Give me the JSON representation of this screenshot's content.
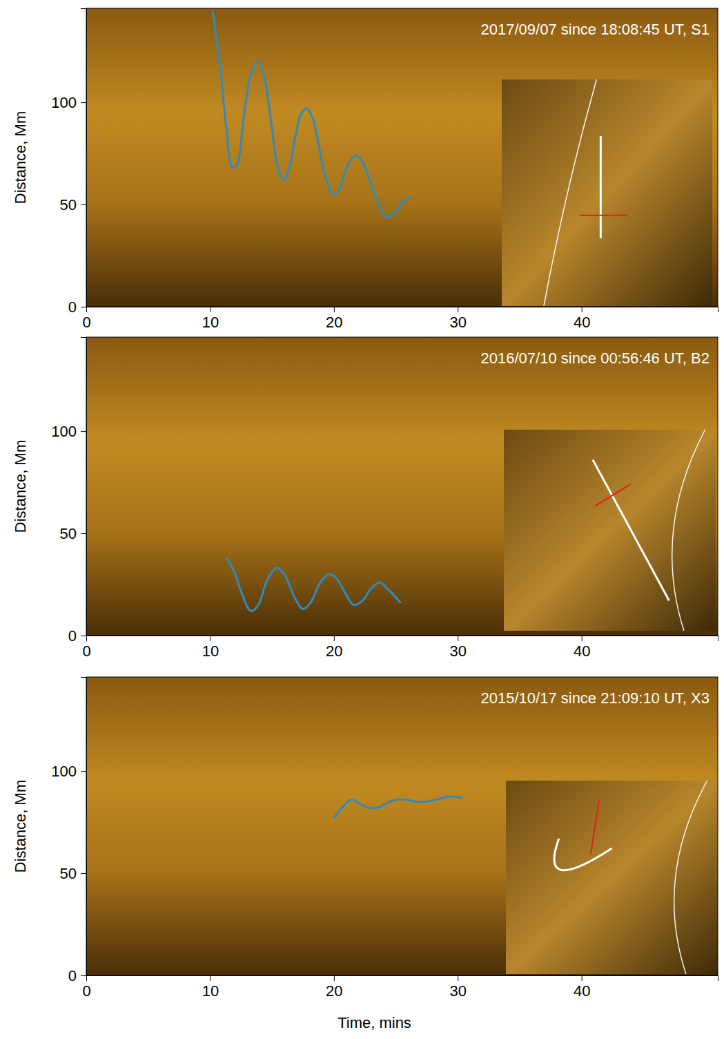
{
  "chart_data": [
    {
      "type": "line",
      "title": "2017/09/07 since 18:08:45 UT, S1",
      "y_label": "Distance, Mm",
      "xlim": [
        0,
        51
      ],
      "xticks": [
        0,
        10,
        20,
        30,
        40
      ],
      "ylim": [
        0,
        146
      ],
      "yticks": [
        0,
        50,
        100
      ],
      "x": [
        10.2,
        10.8,
        11.3,
        11.8,
        12.2,
        12.7,
        13.3,
        13.8,
        14.3,
        14.9,
        15.4,
        15.9,
        16.4,
        16.9,
        17.4,
        17.8,
        18.3,
        18.8,
        19.4,
        19.9,
        20.4,
        20.9,
        21.5,
        21.8,
        22.3,
        22.9,
        23.6,
        24.2,
        24.8,
        25.5,
        26.2
      ],
      "series": [
        {
          "color": "#2f8bbd",
          "values": [
            145,
            118,
            88,
            68,
            70,
            92,
            114,
            120,
            114,
            92,
            70,
            62,
            68,
            84,
            95,
            97,
            92,
            78,
            62,
            55,
            57,
            66,
            73,
            74,
            71,
            62,
            50,
            44,
            45,
            51,
            54
          ]
        }
      ]
    },
    {
      "type": "line",
      "title": "2016/07/10 since 00:56:46 UT, B2",
      "y_label": "Distance, Mm",
      "xlim": [
        0,
        51
      ],
      "xticks": [
        0,
        10,
        20,
        30,
        40
      ],
      "ylim": [
        0,
        146
      ],
      "yticks": [
        0,
        50,
        100
      ],
      "x": [
        11.3,
        11.9,
        12.6,
        13.3,
        13.9,
        14.6,
        15.4,
        16.0,
        16.8,
        17.5,
        18.1,
        18.9,
        19.6,
        20.2,
        20.9,
        21.6,
        22.3,
        23.0,
        23.7,
        24.3,
        25.4
      ],
      "series": [
        {
          "color": "#2f8bbd",
          "values": [
            38,
            32,
            20,
            12,
            15,
            27,
            33,
            30,
            19,
            13,
            16,
            26,
            30,
            28,
            21,
            15,
            17,
            23,
            26,
            23,
            16
          ]
        }
      ]
    },
    {
      "type": "line",
      "title": "2015/10/17 since 21:09:10 UT, X3",
      "y_label": "Distance, Mm",
      "x_label": "Time, mins",
      "xlim": [
        0,
        51
      ],
      "xticks": [
        0,
        10,
        20,
        30,
        40
      ],
      "ylim": [
        0,
        146
      ],
      "yticks": [
        0,
        50,
        100
      ],
      "x": [
        20.0,
        20.8,
        21.4,
        22.1,
        22.8,
        23.5,
        24.2,
        25.0,
        25.8,
        26.6,
        27.4,
        28.3,
        29.2,
        30.4
      ],
      "series": [
        {
          "color": "#2f8bbd",
          "values": [
            77,
            83,
            86,
            84,
            82,
            82,
            84,
            86,
            86,
            85,
            85,
            86,
            87.5,
            87
          ]
        }
      ]
    }
  ]
}
